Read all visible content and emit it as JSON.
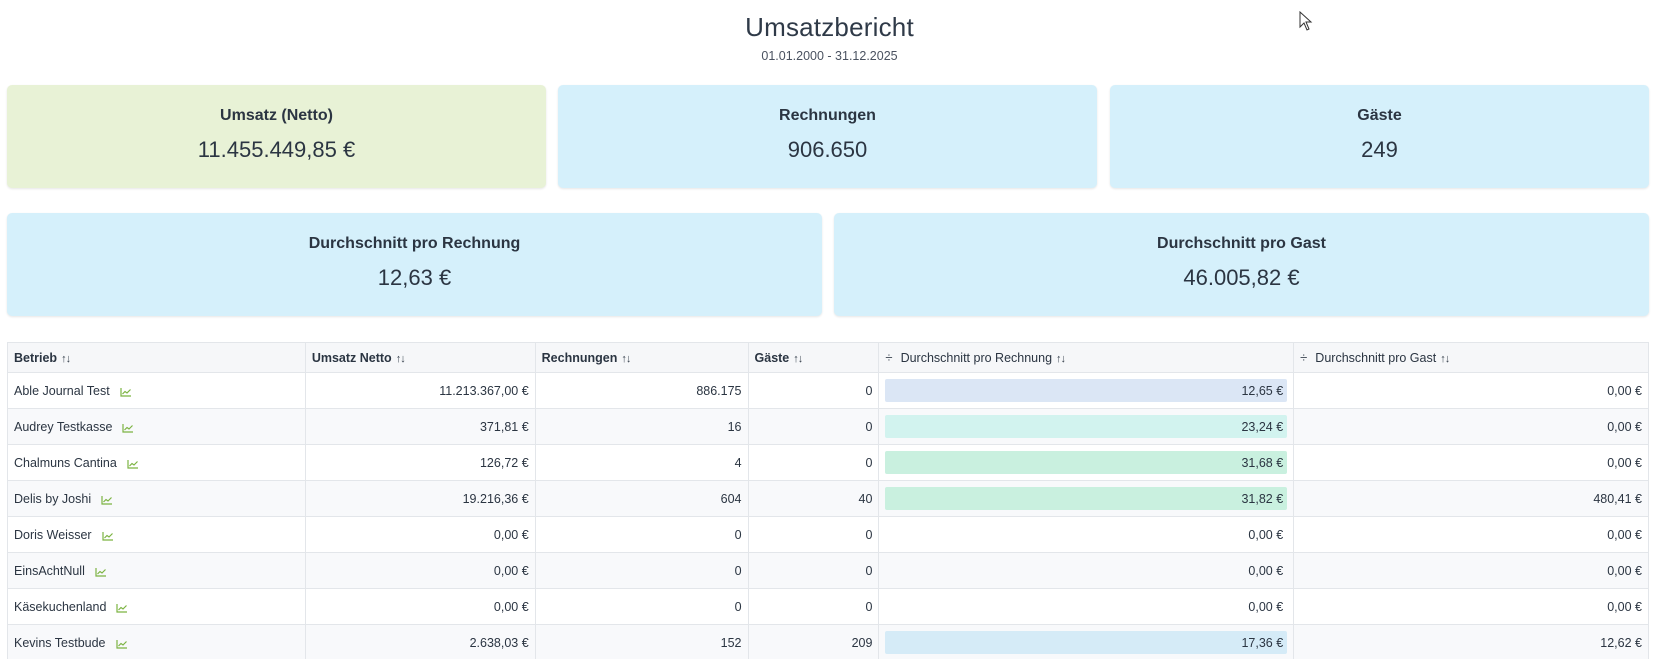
{
  "header": {
    "title": "Umsatzbericht",
    "date_range": "01.01.2000 - 31.12.2025"
  },
  "cards": {
    "revenue": {
      "label": "Umsatz (Netto)",
      "value": "11.455.449,85 €",
      "color": "#e8f2d6"
    },
    "invoices": {
      "label": "Rechnungen",
      "value": "906.650",
      "color": "#d5f0fb"
    },
    "guests": {
      "label": "Gäste",
      "value": "249",
      "color": "#d5f0fb"
    },
    "avg_invoice": {
      "label": "Durchschnitt pro Rechnung",
      "value": "12,63 €",
      "color": "#d5f0fb"
    },
    "avg_guest": {
      "label": "Durchschnitt pro Gast",
      "value": "46.005,82 €",
      "color": "#d5f0fb"
    }
  },
  "table": {
    "columns": [
      "Betrieb",
      "Umsatz Netto",
      "Rechnungen",
      "Gäste",
      "Durchschnitt pro Rechnung",
      "Durchschnitt pro Gast"
    ],
    "sort_symbol": "↑↓",
    "divide_symbol": "÷",
    "rows": [
      {
        "name": "Able Journal Test",
        "revenue": "11.213.367,00 €",
        "invoices": "886.175",
        "guests": "0",
        "avg_invoice": "12,65 €",
        "avg_guest": "0,00 €",
        "bar_color": "#dbe6f5"
      },
      {
        "name": "Audrey Testkasse",
        "revenue": "371,81 €",
        "invoices": "16",
        "guests": "0",
        "avg_invoice": "23,24 €",
        "avg_guest": "0,00 €",
        "bar_color": "#d2f3ef"
      },
      {
        "name": "Chalmuns Cantina",
        "revenue": "126,72 €",
        "invoices": "4",
        "guests": "0",
        "avg_invoice": "31,68 €",
        "avg_guest": "0,00 €",
        "bar_color": "#c9f0df"
      },
      {
        "name": "Delis by Joshi",
        "revenue": "19.216,36 €",
        "invoices": "604",
        "guests": "40",
        "avg_invoice": "31,82 €",
        "avg_guest": "480,41 €",
        "bar_color": "#c9f0df"
      },
      {
        "name": "Doris Weisser",
        "revenue": "0,00 €",
        "invoices": "0",
        "guests": "0",
        "avg_invoice": "0,00 €",
        "avg_guest": "0,00 €",
        "bar_color": ""
      },
      {
        "name": "EinsAchtNull",
        "revenue": "0,00 €",
        "invoices": "0",
        "guests": "0",
        "avg_invoice": "0,00 €",
        "avg_guest": "0,00 €",
        "bar_color": ""
      },
      {
        "name": "Käsekuchenland",
        "revenue": "0,00 €",
        "invoices": "0",
        "guests": "0",
        "avg_invoice": "0,00 €",
        "avg_guest": "0,00 €",
        "bar_color": ""
      },
      {
        "name": "Kevins Testbude",
        "revenue": "2.638,03 €",
        "invoices": "152",
        "guests": "209",
        "avg_invoice": "17,36 €",
        "avg_guest": "12,62 €",
        "bar_color": "#d5ebf7"
      }
    ]
  },
  "icons": {
    "chart": "line-chart-icon",
    "cursor": "mouse-cursor-icon",
    "accent_green": "#7cb342"
  }
}
